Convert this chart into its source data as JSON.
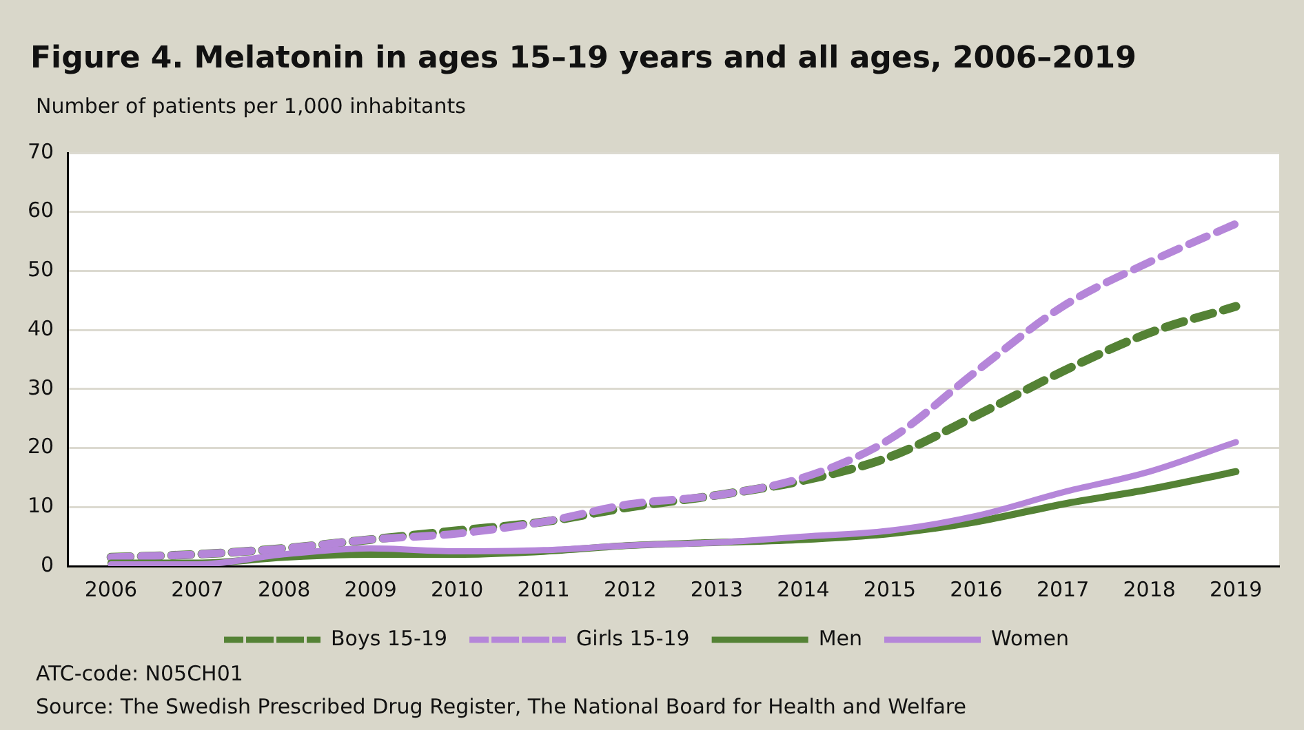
{
  "chart_data": {
    "type": "line",
    "title": "Figure 4. Melatonin in ages 15–19 years and all ages, 2006–2019",
    "ylabel": "Number of patients per 1,000 inhabitants",
    "categories": [
      "2006",
      "2007",
      "2008",
      "2009",
      "2010",
      "2011",
      "2012",
      "2013",
      "2014",
      "2015",
      "2016",
      "2017",
      "2018",
      "2019"
    ],
    "series": [
      {
        "name": "Boys 15-19",
        "color": "#548235",
        "line_style": "dashed",
        "values": [
          1.5,
          2,
          3,
          4.5,
          6,
          7.5,
          10,
          12,
          14.5,
          18.5,
          25.5,
          33,
          39.5,
          44
        ]
      },
      {
        "name": "Girls 15-19",
        "color": "#b586d9",
        "line_style": "dashed",
        "values": [
          1.5,
          2,
          3,
          4.5,
          5.5,
          7.5,
          10.5,
          12,
          15,
          21.5,
          33,
          44,
          51.5,
          58
        ]
      },
      {
        "name": "Men",
        "color": "#548235",
        "line_style": "solid",
        "values": [
          0.5,
          0.5,
          1.5,
          2,
          2,
          2.5,
          3.5,
          4,
          4.5,
          5.5,
          7.5,
          10.5,
          13,
          16
        ]
      },
      {
        "name": "Women",
        "color": "#b586d9",
        "line_style": "solid",
        "values": [
          0.3,
          0.3,
          2,
          3,
          2.5,
          2.7,
          3.5,
          4,
          5,
          6,
          8.5,
          12.5,
          16,
          21
        ]
      }
    ],
    "ylim": [
      0,
      70
    ],
    "yticks": [
      0,
      10,
      20,
      30,
      40,
      50,
      60,
      70
    ],
    "grid": "y",
    "legend": "bottom",
    "marker": "none",
    "annotations": [
      "ATC-code: N05CH01",
      "Source: The Swedish Prescribed Drug Register, The National Board for Health and Welfare"
    ]
  }
}
